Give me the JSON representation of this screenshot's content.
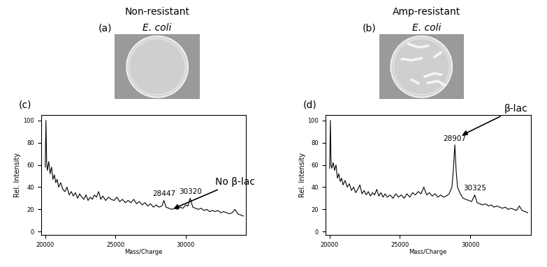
{
  "headers": [
    {
      "label": "(a)",
      "title": "Non-resistant",
      "organism": "E. coli"
    },
    {
      "label": "(b)",
      "title": "Amp-resistant",
      "organism": "E. coli"
    }
  ],
  "chart_data": [
    {
      "type": "line",
      "title": "(c)",
      "x_label": "Mass/Charge",
      "y_label": "Rel. Intensity",
      "color": "#000000",
      "xlim": [
        19700,
        34300
      ],
      "xticks": [
        20000,
        25000,
        30000
      ],
      "ylim": [
        -3,
        105
      ],
      "yticks": [
        0,
        20,
        40,
        60,
        80,
        100
      ],
      "grid": false,
      "x": [
        20000,
        20050,
        20100,
        20150,
        20250,
        20350,
        20450,
        20550,
        20650,
        20750,
        20850,
        20950,
        21100,
        21250,
        21400,
        21550,
        21700,
        21850,
        22000,
        22150,
        22300,
        22450,
        22600,
        22750,
        22900,
        23050,
        23200,
        23350,
        23500,
        23650,
        23800,
        23950,
        24100,
        24300,
        24500,
        24700,
        24900,
        25100,
        25300,
        25500,
        25700,
        25900,
        26100,
        26300,
        26500,
        26700,
        26900,
        27100,
        27300,
        27500,
        27700,
        27900,
        28100,
        28300,
        28447,
        28600,
        28800,
        29000,
        29200,
        29400,
        29600,
        29800,
        30000,
        30150,
        30320,
        30500,
        30700,
        30900,
        31100,
        31300,
        31500,
        31700,
        31900,
        32100,
        32300,
        32500,
        32700,
        32900,
        33100,
        33300,
        33500,
        33700,
        33900,
        34100
      ],
      "values": [
        58,
        100,
        62,
        55,
        63,
        52,
        58,
        47,
        51,
        44,
        47,
        40,
        44,
        38,
        36,
        40,
        33,
        36,
        32,
        35,
        30,
        34,
        31,
        29,
        33,
        28,
        31,
        29,
        33,
        31,
        36,
        29,
        32,
        28,
        31,
        29,
        28,
        31,
        27,
        29,
        26,
        28,
        26,
        29,
        25,
        27,
        24,
        26,
        23,
        25,
        22,
        24,
        22,
        23,
        28,
        22,
        21,
        20,
        21,
        20,
        22,
        21,
        24,
        23,
        30,
        22,
        21,
        20,
        21,
        19,
        20,
        18,
        19,
        18,
        19,
        17,
        18,
        17,
        16,
        17,
        20,
        16,
        15,
        14
      ],
      "annotations": [
        {
          "text": "28447",
          "x": 28447,
          "y": 28,
          "arrow": false
        },
        {
          "text": "30320",
          "x": 30320,
          "y": 30,
          "arrow": false
        },
        {
          "text": "No β-lac",
          "x": 29000,
          "y": 20,
          "arrow": true
        }
      ]
    },
    {
      "type": "line",
      "title": "(d)",
      "x_label": "Mass/Charge",
      "y_label": "Rel. Intensity",
      "color": "#000000",
      "xlim": [
        19700,
        34300
      ],
      "xticks": [
        20000,
        25000,
        30000
      ],
      "ylim": [
        -3,
        105
      ],
      "yticks": [
        0,
        20,
        40,
        60,
        80,
        100
      ],
      "grid": false,
      "x": [
        20000,
        20050,
        20100,
        20150,
        20250,
        20350,
        20450,
        20550,
        20650,
        20750,
        20850,
        20950,
        21100,
        21250,
        21400,
        21550,
        21700,
        21850,
        22000,
        22150,
        22300,
        22450,
        22600,
        22750,
        22900,
        23050,
        23200,
        23350,
        23500,
        23650,
        23800,
        23950,
        24100,
        24300,
        24500,
        24700,
        24900,
        25100,
        25300,
        25500,
        25700,
        25900,
        26100,
        26300,
        26500,
        26700,
        26900,
        27100,
        27300,
        27500,
        27700,
        27900,
        28100,
        28300,
        28500,
        28700,
        28800,
        28907,
        29000,
        29100,
        29300,
        29500,
        29700,
        29900,
        30100,
        30325,
        30500,
        30700,
        30900,
        31100,
        31300,
        31500,
        31700,
        31900,
        32100,
        32300,
        32500,
        32700,
        32900,
        33100,
        33300,
        33500,
        33700,
        33900,
        34100
      ],
      "values": [
        57,
        100,
        60,
        57,
        62,
        55,
        60,
        48,
        52,
        45,
        48,
        42,
        46,
        40,
        43,
        37,
        40,
        35,
        38,
        42,
        34,
        37,
        33,
        36,
        32,
        35,
        33,
        38,
        32,
        35,
        31,
        34,
        31,
        33,
        30,
        34,
        31,
        33,
        30,
        34,
        31,
        35,
        33,
        36,
        34,
        40,
        33,
        35,
        32,
        34,
        31,
        33,
        31,
        32,
        34,
        40,
        55,
        78,
        55,
        40,
        34,
        30,
        29,
        28,
        27,
        33,
        26,
        25,
        24,
        25,
        23,
        24,
        22,
        23,
        22,
        21,
        22,
        20,
        21,
        20,
        19,
        23,
        19,
        18,
        17
      ],
      "annotations": [
        {
          "text": "28907",
          "x": 28907,
          "y": 78,
          "arrow": false
        },
        {
          "text": "30325",
          "x": 30325,
          "y": 33,
          "arrow": false
        },
        {
          "text": "β-lac",
          "x": 29300,
          "y": 86,
          "arrow": true
        }
      ]
    }
  ]
}
